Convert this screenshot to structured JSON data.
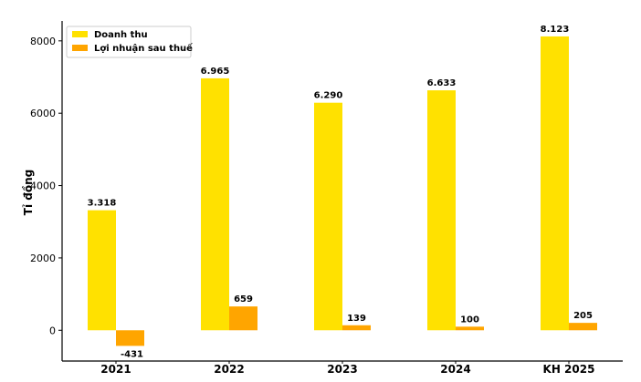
{
  "chart_data": {
    "type": "bar",
    "categories": [
      "2021",
      "2022",
      "2023",
      "2024",
      "KH 2025"
    ],
    "series": [
      {
        "name": "Doanh thu",
        "color": "#FFE100",
        "values": [
          3318,
          6965,
          6290,
          6633,
          8123
        ],
        "labels": [
          "3.318",
          "6.965",
          "6.290",
          "6.633",
          "8.123"
        ]
      },
      {
        "name": "Lợi nhuận sau thuế",
        "color": "#FFA500",
        "values": [
          -431,
          659,
          139,
          100,
          205
        ],
        "labels": [
          "-431",
          "659",
          "139",
          "100",
          "205"
        ]
      }
    ],
    "title": "",
    "xlabel": "",
    "ylabel": "Tỉ đồng",
    "ylim": [
      -850,
      8550
    ],
    "yticks": [
      0,
      2000,
      4000,
      6000,
      8000
    ],
    "ytick_labels": [
      "0",
      "2000",
      "4000",
      "6000",
      "8000"
    ],
    "grid": false,
    "legend_position": "top-left"
  }
}
